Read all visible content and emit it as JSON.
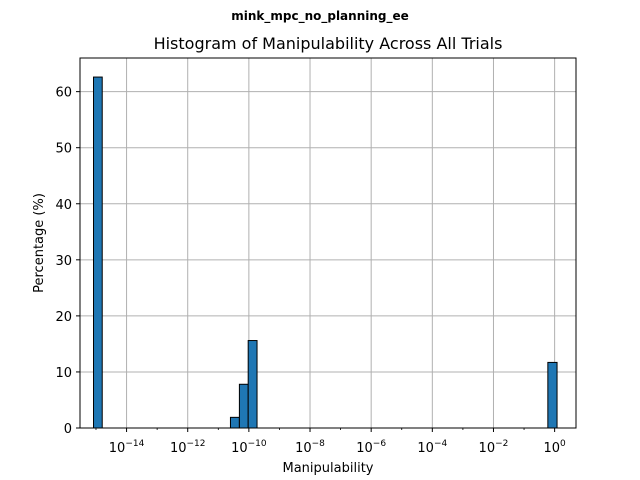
{
  "figure": {
    "suptitle": "mink_mpc_no_planning_ee"
  },
  "chart_data": {
    "type": "bar",
    "title": "Histogram of Manipulability Across All Trials",
    "xlabel": "Manipulability",
    "ylabel": "Percentage (%)",
    "xscale": "log",
    "xlim": [
      3e-16,
      5
    ],
    "ylim": [
      0,
      66
    ],
    "grid": true,
    "bar_color": "#1f77b4",
    "edge_color": "#000000",
    "x_ticks": [
      {
        "value": 1e-14,
        "base": "10",
        "exp": "−14"
      },
      {
        "value": 1e-12,
        "base": "10",
        "exp": "−12"
      },
      {
        "value": 1e-10,
        "base": "10",
        "exp": "−10"
      },
      {
        "value": 1e-08,
        "base": "10",
        "exp": "−8"
      },
      {
        "value": 1e-06,
        "base": "10",
        "exp": "−6"
      },
      {
        "value": 0.0001,
        "base": "10",
        "exp": "−4"
      },
      {
        "value": 0.01,
        "base": "10",
        "exp": "−2"
      },
      {
        "value": 1,
        "base": "10",
        "exp": "0"
      }
    ],
    "y_ticks": [
      0,
      10,
      20,
      30,
      40,
      50,
      60
    ],
    "bins": [
      {
        "x0": 8.3e-16,
        "x1": 1.6e-15,
        "value": 62.6
      },
      {
        "x0": 2.5e-11,
        "x1": 4.9e-11,
        "value": 1.9
      },
      {
        "x0": 4.9e-11,
        "x1": 9.5e-11,
        "value": 7.8
      },
      {
        "x0": 9.5e-11,
        "x1": 1.85e-10,
        "value": 15.6
      },
      {
        "x0": 0.6,
        "x1": 1.2,
        "value": 11.7
      }
    ]
  }
}
